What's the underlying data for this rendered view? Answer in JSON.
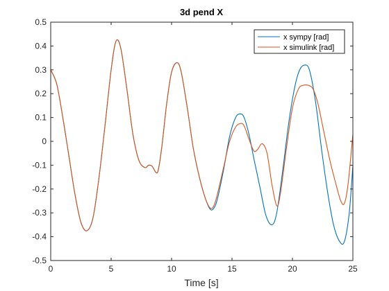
{
  "chart_data": {
    "type": "line",
    "title": "3d pend X",
    "xlabel": "Time [s]",
    "ylabel": "",
    "xlim": [
      0,
      25
    ],
    "ylim": [
      -0.5,
      0.5
    ],
    "xticks": [
      0,
      5,
      10,
      15,
      20,
      25
    ],
    "yticks": [
      -0.5,
      -0.4,
      -0.3,
      -0.2,
      -0.1,
      0,
      0.1,
      0.2,
      0.3,
      0.4,
      0.5
    ],
    "xtick_labels": [
      "0",
      "5",
      "10",
      "15",
      "20",
      "25"
    ],
    "ytick_labels": [
      "-0.5",
      "-0.4",
      "-0.3",
      "-0.2",
      "-0.1",
      "0",
      "0.1",
      "0.2",
      "0.3",
      "0.4",
      "0.5"
    ],
    "grid": false,
    "legend_position": "top-right",
    "series": [
      {
        "name": "x sympy [rad]",
        "color": "#0072BD",
        "x": [
          0,
          0.5,
          1,
          1.5,
          2,
          2.5,
          3,
          3.5,
          4,
          4.5,
          5,
          5.4,
          5.8,
          6.3,
          6.8,
          7.3,
          7.8,
          8.1,
          8.4,
          8.7,
          8.9,
          9.2,
          9.6,
          10,
          10.45,
          10.8,
          11.3,
          11.8,
          12.3,
          12.8,
          13.2,
          13.5,
          13.8,
          14.3,
          14.8,
          15.3,
          15.7,
          16,
          16.4,
          16.8,
          17.3,
          17.8,
          18.3,
          18.7,
          19.2,
          19.7,
          20.2,
          20.6,
          21,
          21.4,
          21.9,
          22.4,
          22.9,
          23.4,
          23.9,
          24.3,
          24.7,
          25
        ],
        "y": [
          0.3,
          0.24,
          0.1,
          -0.06,
          -0.22,
          -0.34,
          -0.375,
          -0.32,
          -0.15,
          0.07,
          0.3,
          0.42,
          0.39,
          0.22,
          0.03,
          -0.08,
          -0.11,
          -0.1,
          -0.105,
          -0.13,
          -0.12,
          -0.02,
          0.16,
          0.29,
          0.33,
          0.29,
          0.14,
          -0.03,
          -0.15,
          -0.24,
          -0.285,
          -0.28,
          -0.24,
          -0.12,
          0.02,
          0.1,
          0.115,
          0.1,
          0.03,
          -0.07,
          -0.19,
          -0.31,
          -0.35,
          -0.3,
          -0.12,
          0.08,
          0.23,
          0.3,
          0.32,
          0.3,
          0.17,
          -0.03,
          -0.21,
          -0.35,
          -0.42,
          -0.42,
          -0.3,
          -0.1
        ]
      },
      {
        "name": "x simulink [rad]",
        "color": "#D95319",
        "x": [
          0,
          0.5,
          1,
          1.5,
          2,
          2.5,
          3,
          3.5,
          4,
          4.5,
          5,
          5.4,
          5.8,
          6.3,
          6.8,
          7.3,
          7.8,
          8.1,
          8.4,
          8.7,
          8.9,
          9.2,
          9.6,
          10,
          10.45,
          10.8,
          11.3,
          11.8,
          12.3,
          12.8,
          13.2,
          13.5,
          13.8,
          14.3,
          14.8,
          15.3,
          15.7,
          16,
          16.4,
          16.8,
          17.1,
          17.5,
          17.9,
          18.3,
          18.7,
          19,
          19.5,
          20,
          20.5,
          20.9,
          21.3,
          21.7,
          22.1,
          22.6,
          23.1,
          23.6,
          24,
          24.3,
          24.6,
          25
        ],
        "y": [
          0.3,
          0.24,
          0.1,
          -0.06,
          -0.22,
          -0.34,
          -0.375,
          -0.32,
          -0.15,
          0.07,
          0.3,
          0.42,
          0.39,
          0.22,
          0.03,
          -0.08,
          -0.11,
          -0.1,
          -0.105,
          -0.13,
          -0.12,
          -0.02,
          0.16,
          0.29,
          0.33,
          0.29,
          0.14,
          -0.03,
          -0.15,
          -0.24,
          -0.28,
          -0.27,
          -0.22,
          -0.11,
          0.0,
          0.06,
          0.075,
          0.065,
          0.01,
          -0.04,
          -0.035,
          -0.01,
          -0.05,
          -0.18,
          -0.27,
          -0.22,
          -0.03,
          0.14,
          0.22,
          0.235,
          0.235,
          0.22,
          0.16,
          0.04,
          -0.08,
          -0.18,
          -0.25,
          -0.26,
          -0.18,
          0.03
        ]
      }
    ]
  }
}
